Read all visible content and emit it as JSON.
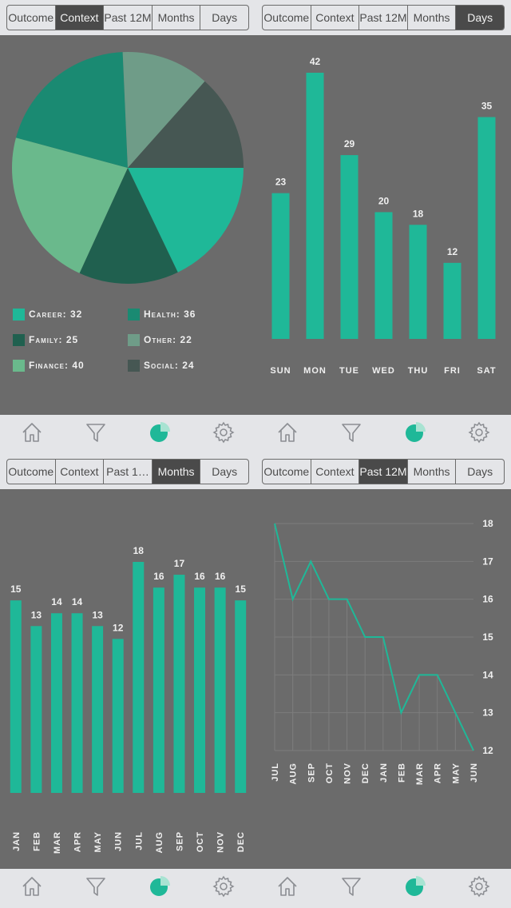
{
  "segment_labels": [
    "Outcome",
    "Context",
    "Past 12M",
    "Months",
    "Days"
  ],
  "colors": {
    "accent": "#1fb898",
    "background": "#6b6b6b",
    "bar": "#1fb898",
    "line": "#1fb898",
    "pie": [
      "#1fb898",
      "#20604f",
      "#6ab98c",
      "#1a8a72",
      "#6f9c88",
      "#465753"
    ]
  },
  "panels": [
    {
      "segment": {
        "items": [
          "Outcome",
          "Context",
          "Past 12M",
          "Months",
          "Days"
        ],
        "active_index": 1
      },
      "chart_data": {
        "type": "pie",
        "slices": [
          {
            "label": "Career",
            "value": 32,
            "color": "#1fb898"
          },
          {
            "label": "Family",
            "value": 25,
            "color": "#20604f"
          },
          {
            "label": "Finance",
            "value": 40,
            "color": "#6ab98c"
          },
          {
            "label": "Health",
            "value": 36,
            "color": "#1a8a72"
          },
          {
            "label": "Other",
            "value": 22,
            "color": "#6f9c88"
          },
          {
            "label": "Social",
            "value": 24,
            "color": "#465753"
          }
        ],
        "legend": [
          {
            "text": "Career: 32",
            "color": "#1fb898"
          },
          {
            "text": "Health: 36",
            "color": "#1a8a72"
          },
          {
            "text": "Family: 25",
            "color": "#20604f"
          },
          {
            "text": "Other: 22",
            "color": "#6f9c88"
          },
          {
            "text": "Finance: 40",
            "color": "#6ab98c"
          },
          {
            "text": "Social: 24",
            "color": "#465753"
          }
        ]
      }
    },
    {
      "segment": {
        "items": [
          "Outcome",
          "Context",
          "Past 12M",
          "Months",
          "Days"
        ],
        "active_index": 4
      },
      "chart_data": {
        "type": "bar",
        "categories": [
          "SUN",
          "MON",
          "TUE",
          "WED",
          "THU",
          "FRI",
          "SAT"
        ],
        "values": [
          23,
          42,
          29,
          20,
          18,
          12,
          35
        ],
        "ylim": [
          0,
          42
        ]
      }
    },
    {
      "segment": {
        "items": [
          "Outcome",
          "Context",
          "Past 1…",
          "Months",
          "Days"
        ],
        "active_index": 3
      },
      "chart_data": {
        "type": "bar",
        "categories": [
          "JAN",
          "FEB",
          "MAR",
          "APR",
          "MAY",
          "JUN",
          "JUL",
          "AUG",
          "SEP",
          "OCT",
          "NOV",
          "DEC"
        ],
        "values": [
          15,
          13,
          14,
          14,
          13,
          12,
          18,
          16,
          17,
          16,
          16,
          15
        ],
        "ylim": [
          0,
          18
        ]
      }
    },
    {
      "segment": {
        "items": [
          "Outcome",
          "Context",
          "Past 12M",
          "Months",
          "Days"
        ],
        "active_index": 2
      },
      "chart_data": {
        "type": "line",
        "categories": [
          "JUL",
          "AUG",
          "SEP",
          "OCT",
          "NOV",
          "DEC",
          "JAN",
          "FEB",
          "MAR",
          "APR",
          "MAY",
          "JUN"
        ],
        "values": [
          18,
          16,
          17,
          16,
          16,
          15,
          15,
          13,
          14,
          14,
          13,
          12
        ],
        "y_ticks": [
          "18",
          "17",
          "16",
          "15",
          "14",
          "13",
          "12"
        ],
        "ylim": [
          12,
          18
        ],
        "grid": true
      }
    }
  ],
  "tabbar": {
    "tabs": [
      {
        "name": "home-icon",
        "active": false
      },
      {
        "name": "filter-icon",
        "active": false
      },
      {
        "name": "pie-chart-icon",
        "active": true
      },
      {
        "name": "gear-icon",
        "active": false
      }
    ]
  }
}
